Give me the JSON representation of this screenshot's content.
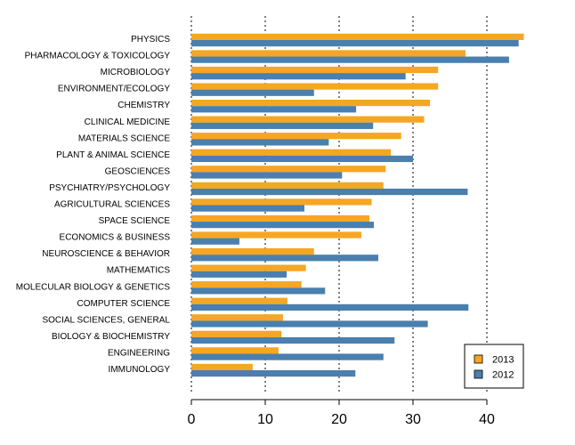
{
  "chart_data": {
    "type": "bar",
    "orientation": "horizontal",
    "categories": [
      "PHYSICS",
      "PHARMACOLOGY & TOXICOLOGY",
      "MICROBIOLOGY",
      "ENVIRONMENT/ECOLOGY",
      "CHEMISTRY",
      "CLINICAL MEDICINE",
      "MATERIALS SCIENCE",
      "PLANT & ANIMAL SCIENCE",
      "GEOSCIENCES",
      "PSYCHIATRY/PSYCHOLOGY",
      "AGRICULTURAL SCIENCES",
      "SPACE SCIENCE",
      "ECONOMICS & BUSINESS",
      "NEUROSCIENCE & BEHAVIOR",
      "MATHEMATICS",
      "MOLECULAR BIOLOGY & GENETICS",
      "COMPUTER SCIENCE",
      "SOCIAL SCIENCES, GENERAL",
      "BIOLOGY & BIOCHEMISTRY",
      "ENGINEERING",
      "IMMUNOLOGY"
    ],
    "series": [
      {
        "name": "2013",
        "color": "#F5A623",
        "values": [
          45.0,
          37.1,
          33.4,
          33.4,
          32.3,
          31.5,
          28.4,
          27.0,
          26.3,
          26.0,
          24.4,
          24.1,
          23.0,
          16.6,
          15.5,
          14.9,
          13.0,
          12.4,
          12.2,
          11.8,
          8.3
        ]
      },
      {
        "name": "2012",
        "color": "#4A7FAE",
        "values": [
          44.3,
          43.0,
          29.0,
          16.6,
          22.3,
          24.6,
          18.6,
          30.0,
          20.4,
          37.4,
          15.3,
          24.7,
          6.5,
          25.3,
          12.9,
          18.1,
          37.5,
          32.0,
          27.5,
          26.0,
          22.2
        ]
      }
    ],
    "xticks": [
      0,
      10,
      20,
      30,
      40
    ],
    "xlim": [
      0,
      45
    ],
    "gridlines": "vertical dotted",
    "legend": {
      "position": "bottom-right",
      "entries": [
        "2013",
        "2012"
      ]
    },
    "title": "",
    "xlabel": "",
    "ylabel": ""
  }
}
